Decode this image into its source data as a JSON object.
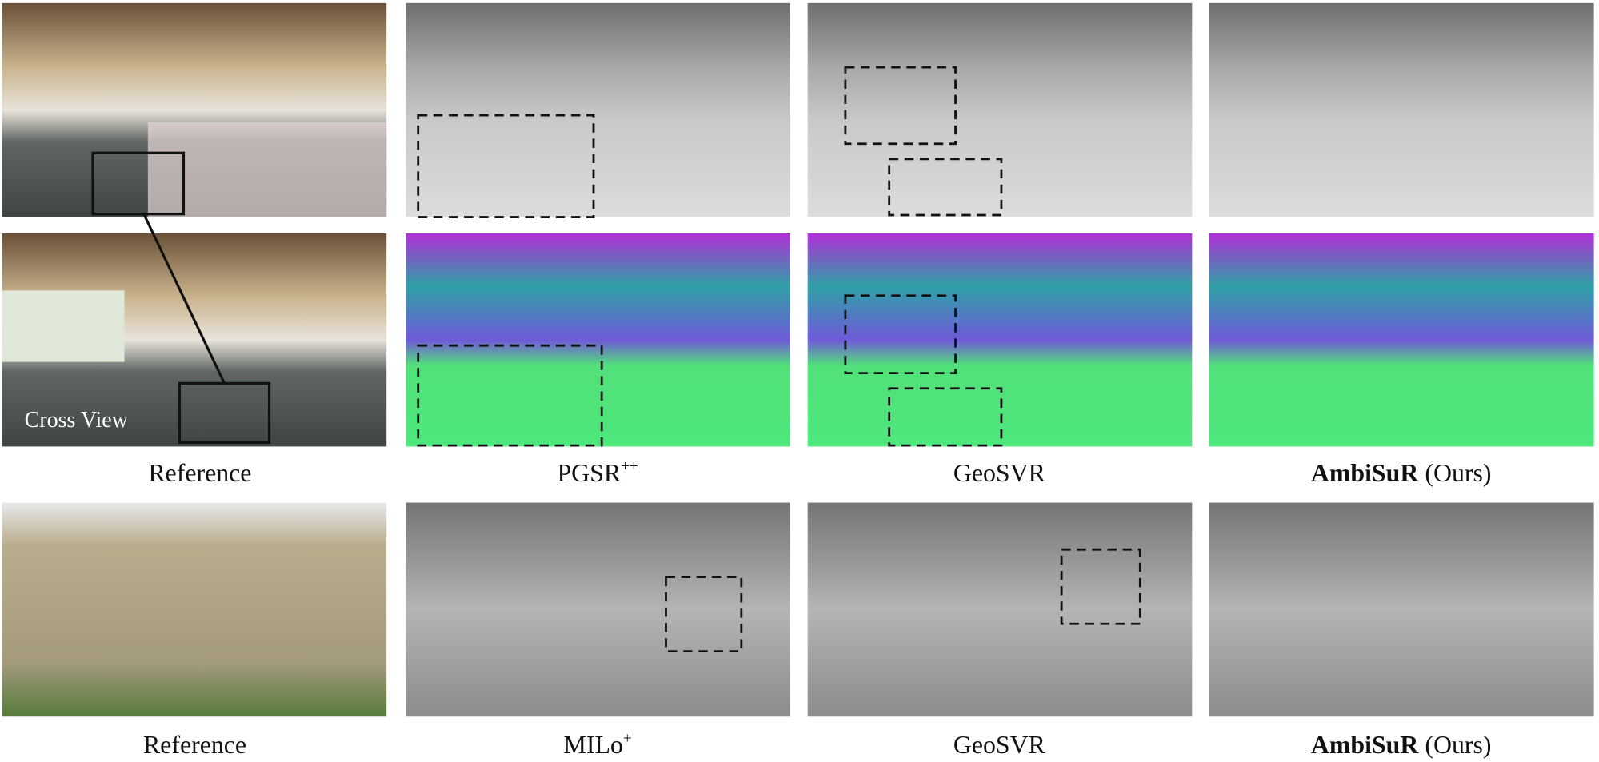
{
  "overlay_label": "Cross View",
  "captions_row1": [
    {
      "name": "Reference"
    },
    {
      "name": "PGSR",
      "sup": "++"
    },
    {
      "name": "GeoSVR"
    },
    {
      "method": "AmbiSuR",
      "suffix": "(Ours)"
    }
  ],
  "captions_row2": [
    {
      "name": "Reference"
    },
    {
      "name": "MILo",
      "sup": "+"
    },
    {
      "name": "GeoSVR"
    },
    {
      "method": "AmbiSuR",
      "suffix": "(Ours)"
    }
  ]
}
